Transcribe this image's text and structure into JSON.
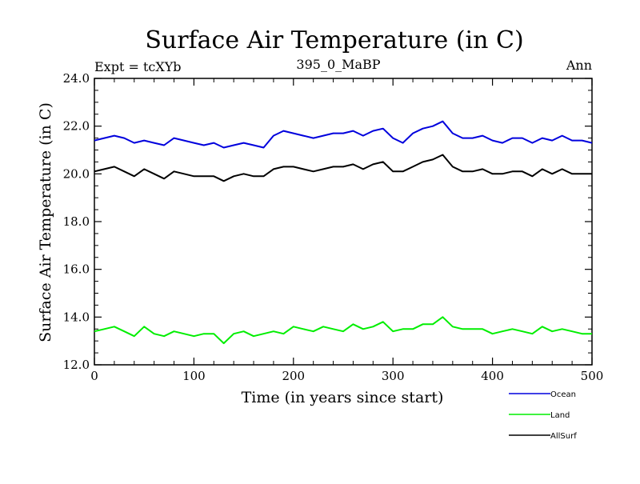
{
  "chart_data": {
    "type": "line",
    "title": "Surface Air Temperature (in C)",
    "subtitle": "395_0_MaBP",
    "left_label": "Expt = tcXYb",
    "right_label": "Ann",
    "xlabel": "Time (in years since start)",
    "ylabel": "Surface Air Temperature (in C)",
    "xlim": [
      0,
      500
    ],
    "ylim": [
      12.0,
      24.0
    ],
    "xticks": [
      "0",
      "100",
      "200",
      "300",
      "400",
      "500"
    ],
    "yticks": [
      "12.0",
      "14.0",
      "16.0",
      "18.0",
      "20.0",
      "22.0",
      "24.0"
    ],
    "grid": false,
    "legend_position": "bottom-right, outside plot",
    "x": [
      0,
      10,
      20,
      30,
      40,
      50,
      60,
      70,
      80,
      90,
      100,
      110,
      120,
      130,
      140,
      150,
      160,
      170,
      180,
      190,
      200,
      210,
      220,
      230,
      240,
      250,
      260,
      270,
      280,
      290,
      300,
      310,
      320,
      330,
      340,
      350,
      360,
      370,
      380,
      390,
      400,
      410,
      420,
      430,
      440,
      450,
      460,
      470,
      480,
      490,
      500
    ],
    "series": [
      {
        "name": "Ocean",
        "color": "#0000dd",
        "values": [
          21.4,
          21.5,
          21.6,
          21.5,
          21.3,
          21.4,
          21.3,
          21.2,
          21.5,
          21.4,
          21.3,
          21.2,
          21.3,
          21.1,
          21.2,
          21.3,
          21.2,
          21.1,
          21.6,
          21.8,
          21.7,
          21.6,
          21.5,
          21.6,
          21.7,
          21.7,
          21.8,
          21.6,
          21.8,
          21.9,
          21.5,
          21.3,
          21.7,
          21.9,
          22.0,
          22.2,
          21.7,
          21.5,
          21.5,
          21.6,
          21.4,
          21.3,
          21.5,
          21.5,
          21.3,
          21.5,
          21.4,
          21.6,
          21.4,
          21.4,
          21.3
        ]
      },
      {
        "name": "Land",
        "color": "#00ee00",
        "values": [
          13.4,
          13.5,
          13.6,
          13.4,
          13.2,
          13.6,
          13.3,
          13.2,
          13.4,
          13.3,
          13.2,
          13.3,
          13.3,
          12.9,
          13.3,
          13.4,
          13.2,
          13.3,
          13.4,
          13.3,
          13.6,
          13.5,
          13.4,
          13.6,
          13.5,
          13.4,
          13.7,
          13.5,
          13.6,
          13.8,
          13.4,
          13.5,
          13.5,
          13.7,
          13.7,
          14.0,
          13.6,
          13.5,
          13.5,
          13.5,
          13.3,
          13.4,
          13.5,
          13.4,
          13.3,
          13.6,
          13.4,
          13.5,
          13.4,
          13.3,
          13.3
        ]
      },
      {
        "name": "AllSurf",
        "color": "#000000",
        "values": [
          20.1,
          20.2,
          20.3,
          20.1,
          19.9,
          20.2,
          20.0,
          19.8,
          20.1,
          20.0,
          19.9,
          19.9,
          19.9,
          19.7,
          19.9,
          20.0,
          19.9,
          19.9,
          20.2,
          20.3,
          20.3,
          20.2,
          20.1,
          20.2,
          20.3,
          20.3,
          20.4,
          20.2,
          20.4,
          20.5,
          20.1,
          20.1,
          20.3,
          20.5,
          20.6,
          20.8,
          20.3,
          20.1,
          20.1,
          20.2,
          20.0,
          20.0,
          20.1,
          20.1,
          19.9,
          20.2,
          20.0,
          20.2,
          20.0,
          20.0,
          20.0
        ]
      }
    ]
  }
}
